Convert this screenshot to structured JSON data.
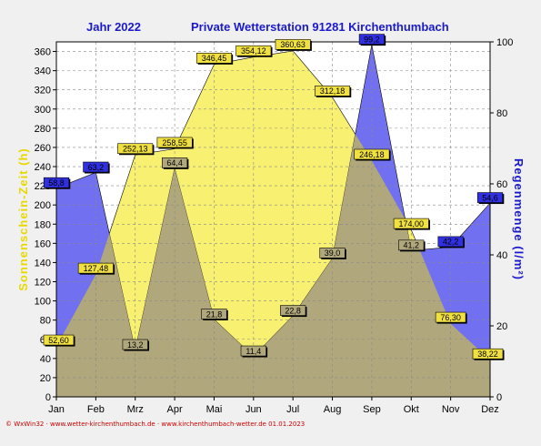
{
  "header": {
    "year_label": "Jahr  2022",
    "station_title": "Private Wetterstation 91281 Kirchenthumbach"
  },
  "footer": {
    "credit": "© WxWin32 · www.wetter-kirchenthumbach.de · www.kirchenthumbach-wetter.de  01.01.2023"
  },
  "colors": {
    "sunshine_fill": "#f8f070",
    "rain_fill": "#7070f0",
    "overlap_fill": "#b0a87c",
    "sunshine_label_bg": "#f0e040",
    "rain_label_bg": "#3030e0",
    "left_axis_color": "#e8d800",
    "right_axis_color": "#1a1acc"
  },
  "chart_data": {
    "type": "area",
    "categories": [
      "Jan",
      "Feb",
      "Mrz",
      "Apr",
      "Mai",
      "Jun",
      "Jul",
      "Aug",
      "Sep",
      "Okt",
      "Nov",
      "Dez"
    ],
    "series": [
      {
        "name": "Sonnenschein-Zeit",
        "axis": "left",
        "values": [
          52.6,
          127.48,
          252.13,
          258.55,
          346.45,
          354.12,
          360.63,
          312.18,
          246.18,
          174.0,
          76.3,
          38.22
        ],
        "labels": [
          "52,60",
          "127,48",
          "252,13",
          "258,55",
          "346,45",
          "354,12",
          "360,63",
          "312,18",
          "246,18",
          "174,00",
          "76,30",
          "38,22"
        ]
      },
      {
        "name": "Regenmenge",
        "axis": "right",
        "values": [
          58.8,
          63.2,
          13.2,
          64.4,
          21.8,
          11.4,
          22.8,
          39.0,
          99.2,
          41.2,
          42.2,
          54.6
        ],
        "labels": [
          "58,8",
          "63,2",
          "13,2",
          "64,4",
          "21,8",
          "11,4",
          "22,8",
          "39,0",
          "99,2",
          "41,2",
          "42,2",
          "54,6"
        ]
      }
    ],
    "ylabel": "Sonnenschein-Zeit  (h)",
    "y2label": "Regenmenge  (l/m²)",
    "ylim": [
      0,
      370
    ],
    "y2lim": [
      0,
      100
    ],
    "yticks": [
      0,
      20,
      40,
      60,
      80,
      100,
      120,
      140,
      160,
      180,
      200,
      220,
      240,
      260,
      280,
      300,
      320,
      340,
      360
    ],
    "y2ticks": [
      0,
      20,
      40,
      60,
      80,
      100
    ],
    "grid": true
  }
}
